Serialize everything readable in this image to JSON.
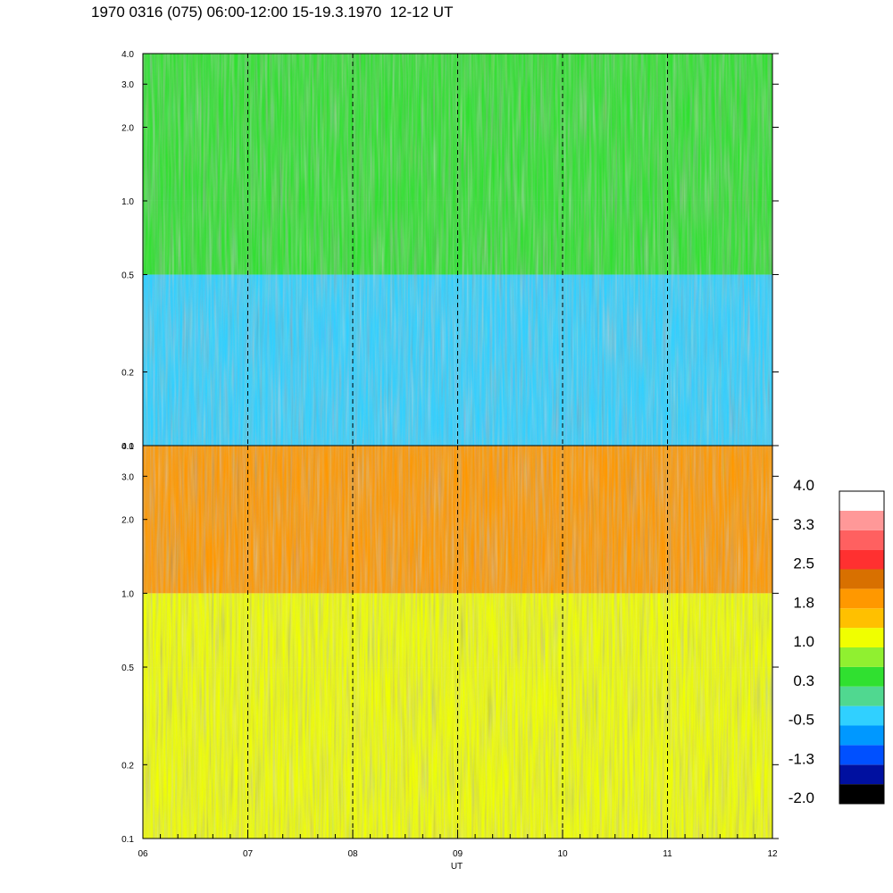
{
  "title": "1970 0316 (075) 06:00-12:00 15-19.3.1970  12-12 UT",
  "chart_data": [
    {
      "type": "heatmap",
      "panel": "upper",
      "x_range": [
        6,
        12
      ],
      "ylim": [
        0.1,
        4.0
      ],
      "yscale": "log",
      "y_ticks": [
        0.1,
        0.2,
        0.5,
        1.0,
        2.0,
        3.0,
        4.0
      ],
      "y_tick_labels": [
        "0.1",
        "0.2",
        "0.5",
        "1.0",
        "2.0",
        "3.0",
        "4.0"
      ],
      "dominant_levels": [
        {
          "y_range": [
            0.1,
            0.5
          ],
          "value": -0.5
        },
        {
          "y_range": [
            0.5,
            1.0
          ],
          "value": 0.3
        },
        {
          "y_range": [
            1.0,
            4.0
          ],
          "value": 0.6
        }
      ]
    },
    {
      "type": "heatmap",
      "panel": "lower",
      "x_range": [
        6,
        12
      ],
      "ylim": [
        0.1,
        4.0
      ],
      "yscale": "log",
      "y_ticks": [
        0.1,
        0.2,
        0.5,
        1.0,
        2.0,
        3.0,
        4.0
      ],
      "y_tick_labels": [
        "0.1",
        "0.2",
        "0.5",
        "1.0",
        "2.0",
        "3.0",
        "4.0"
      ],
      "xlabel": "UT",
      "x_ticks": [
        6,
        7,
        8,
        9,
        10,
        11,
        12
      ],
      "x_tick_labels": [
        "06",
        "07",
        "08",
        "09",
        "10",
        "11",
        "12"
      ],
      "dominant_levels": [
        {
          "y_range": [
            0.1,
            0.5
          ],
          "value": 1.0
        },
        {
          "y_range": [
            0.5,
            1.0
          ],
          "value": 1.3
        },
        {
          "y_range": [
            1.0,
            4.0
          ],
          "value": 1.8
        }
      ]
    }
  ],
  "colorbar": {
    "min": -2.0,
    "max": 4.0,
    "labels": [
      "4.0",
      "3.3",
      "2.5",
      "1.8",
      "1.0",
      "0.3",
      "-0.5",
      "-1.3",
      "-2.0"
    ],
    "colors": [
      "#000000",
      "#0010a0",
      "#0050ff",
      "#0098ff",
      "#30d0ff",
      "#50d890",
      "#30e030",
      "#90f030",
      "#f0ff00",
      "#ffc000",
      "#ff9800",
      "#d87000",
      "#ff3030",
      "#ff6060",
      "#ff9898",
      "#ffffff"
    ]
  }
}
